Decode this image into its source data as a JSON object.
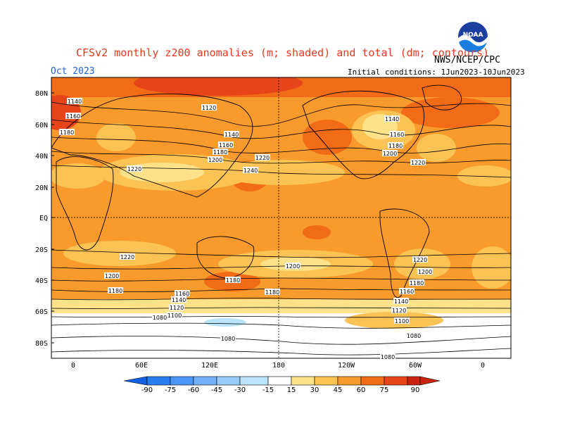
{
  "header": {
    "title": "CFSv2 monthly z200 anomalies (m; shaded) and total (dm; contours)",
    "org": "NWS/NCEP/CPC",
    "valid_month": "Oct 2023",
    "initial_conditions": "Initial conditions: 1Jun2023-10Jun2023",
    "logo_text": "NOAA"
  },
  "axes": {
    "lat_labels": [
      "80N",
      "60N",
      "40N",
      "20N",
      "EQ",
      "20S",
      "40S",
      "60S",
      "80S"
    ],
    "lon_labels": [
      "0",
      "60E",
      "120E",
      "180",
      "120W",
      "60W",
      "0"
    ]
  },
  "colorbar": {
    "labels": [
      "-90",
      "-75",
      "-60",
      "-45",
      "-30",
      "-15",
      "15",
      "30",
      "45",
      "60",
      "75",
      "90"
    ],
    "colors": [
      "#1060e0",
      "#2a7df0",
      "#4a95f5",
      "#6fb0f8",
      "#96cbfa",
      "#b9e4fb",
      "#ffffff",
      "#fde28a",
      "#fbc254",
      "#f99a2c",
      "#f26b16",
      "#e8441a",
      "#c92410"
    ]
  },
  "contour_labels": [
    {
      "text": "1140"
    },
    {
      "text": "1160"
    },
    {
      "text": "1180"
    },
    {
      "text": "1120"
    },
    {
      "text": "1140"
    },
    {
      "text": "1160"
    },
    {
      "text": "1180"
    },
    {
      "text": "1200"
    },
    {
      "text": "1220"
    },
    {
      "text": "1240"
    },
    {
      "text": "1220"
    },
    {
      "text": "1140"
    },
    {
      "text": "1160"
    },
    {
      "text": "1180"
    },
    {
      "text": "1200"
    },
    {
      "text": "1220"
    },
    {
      "text": "1220"
    },
    {
      "text": "1200"
    },
    {
      "text": "1200"
    },
    {
      "text": "1180"
    },
    {
      "text": "1180"
    },
    {
      "text": "1160"
    },
    {
      "text": "1140"
    },
    {
      "text": "1120"
    },
    {
      "text": "1100"
    },
    {
      "text": "1080"
    },
    {
      "text": "1080"
    },
    {
      "text": "1180"
    },
    {
      "text": "1220"
    },
    {
      "text": "1200"
    },
    {
      "text": "1180"
    },
    {
      "text": "1160"
    },
    {
      "text": "1140"
    },
    {
      "text": "1120"
    },
    {
      "text": "1100"
    },
    {
      "text": "1080"
    },
    {
      "text": "1080"
    }
  ]
}
